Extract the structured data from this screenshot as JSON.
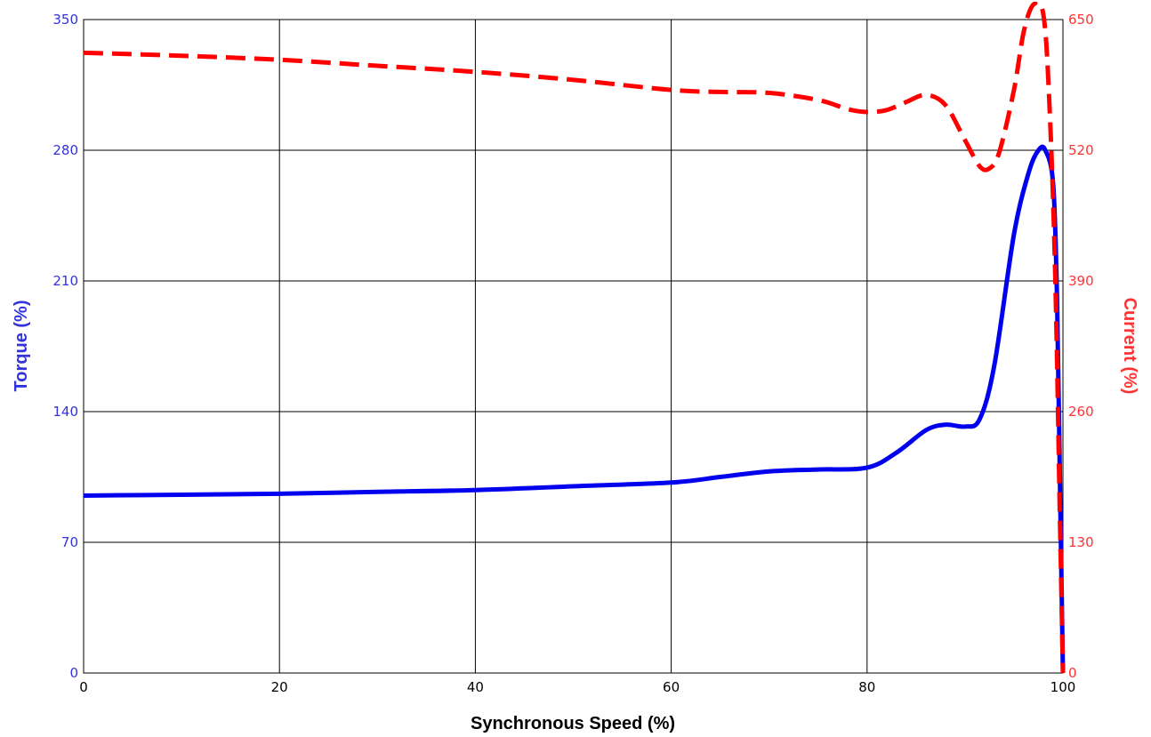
{
  "chart_data": {
    "type": "line",
    "title": "",
    "xlabel": "Synchronous Speed (%)",
    "ylabel_left": "Torque (%)",
    "ylabel_right": "Current (%)",
    "xlim": [
      0,
      100
    ],
    "ylim_left": [
      0,
      350
    ],
    "ylim_right": [
      0,
      650
    ],
    "grid": true,
    "x_ticks": [
      "0",
      "20",
      "40",
      "60",
      "80",
      "100"
    ],
    "y_left_ticks": [
      "0",
      "70",
      "140",
      "210",
      "280",
      "350"
    ],
    "y_right_ticks": [
      "0",
      "130",
      "260",
      "390",
      "520",
      "650"
    ],
    "series": [
      {
        "axis": "left",
        "style": "solid",
        "color": "#0000ee",
        "x": [
          0,
          10,
          20,
          30,
          40,
          50,
          60,
          65,
          70,
          75,
          80,
          83,
          86,
          88,
          90,
          91.5,
          93,
          95,
          96.5,
          97.5,
          98.2,
          99,
          99.4,
          99.7,
          100
        ],
        "y": [
          95,
          95.5,
          96,
          97,
          98,
          100,
          102,
          105,
          108,
          109,
          110,
          118,
          130,
          133,
          132,
          136,
          165,
          235,
          268,
          280,
          280,
          262,
          200,
          100,
          0
        ]
      },
      {
        "axis": "right",
        "style": "dashed",
        "color": "#ff0000",
        "x": [
          0,
          10,
          20,
          30,
          40,
          50,
          60,
          65,
          70,
          75,
          78,
          80,
          82,
          84,
          86,
          88,
          90,
          91.5,
          92.5,
          93.5,
          95,
          96,
          97,
          98,
          98.6,
          99.2,
          99.7,
          100
        ],
        "y": [
          617,
          614,
          610,
          604,
          598,
          590,
          580,
          578,
          577,
          570,
          561,
          558,
          560,
          568,
          575,
          565,
          530,
          504,
          502,
          518,
          580,
          638,
          665,
          655,
          570,
          400,
          150,
          0
        ]
      }
    ]
  },
  "colors": {
    "torque": "#0000ee",
    "current": "#ff0000",
    "grid": "#000000",
    "left_ticks": "#3333dd",
    "right_ticks": "#ff3333"
  }
}
